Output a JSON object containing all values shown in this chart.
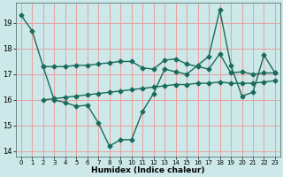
{
  "xlabel": "Humidex (Indice chaleur)",
  "bg_color": "#cce8e8",
  "grid_color": "#e8a0a0",
  "line_color": "#1a6b5a",
  "line1_x": [
    2,
    3,
    4,
    5,
    6,
    7,
    8,
    9,
    10,
    11,
    12,
    13,
    14,
    15,
    16,
    17,
    18,
    19,
    20,
    21,
    22,
    23
  ],
  "line1_y": [
    17.3,
    17.3,
    17.3,
    17.35,
    17.35,
    17.4,
    17.45,
    17.5,
    17.5,
    17.25,
    17.2,
    17.55,
    17.6,
    17.4,
    17.3,
    17.2,
    17.8,
    17.05,
    17.1,
    17.0,
    17.05,
    17.05
  ],
  "line2_x": [
    2,
    3,
    4,
    5,
    6,
    7,
    8,
    9,
    10,
    11,
    12,
    13,
    14,
    15,
    16,
    17,
    18,
    19,
    20,
    21,
    22,
    23
  ],
  "line2_y": [
    16.0,
    16.05,
    16.1,
    16.15,
    16.2,
    16.25,
    16.3,
    16.35,
    16.4,
    16.45,
    16.5,
    16.55,
    16.6,
    16.6,
    16.65,
    16.65,
    16.7,
    16.65,
    16.65,
    16.65,
    16.7,
    16.75
  ],
  "line3_x": [
    0,
    1,
    2,
    3,
    4,
    5,
    6,
    7,
    8,
    9,
    10,
    11,
    12,
    13,
    14,
    15,
    16,
    17,
    18,
    19,
    20,
    21,
    22,
    23
  ],
  "line3_y": [
    19.3,
    18.7,
    17.3,
    16.0,
    15.9,
    15.75,
    15.8,
    15.1,
    14.2,
    14.45,
    14.45,
    15.55,
    16.25,
    17.2,
    17.1,
    17.0,
    17.35,
    17.7,
    19.5,
    17.35,
    16.15,
    16.3,
    17.75,
    17.05
  ],
  "ylim": [
    13.8,
    19.8
  ],
  "xlim": [
    -0.5,
    23.5
  ],
  "yticks": [
    14,
    15,
    16,
    17,
    18,
    19
  ],
  "xticks": [
    0,
    1,
    2,
    3,
    4,
    5,
    6,
    7,
    8,
    9,
    10,
    11,
    12,
    13,
    14,
    15,
    16,
    17,
    18,
    19,
    20,
    21,
    22,
    23
  ]
}
